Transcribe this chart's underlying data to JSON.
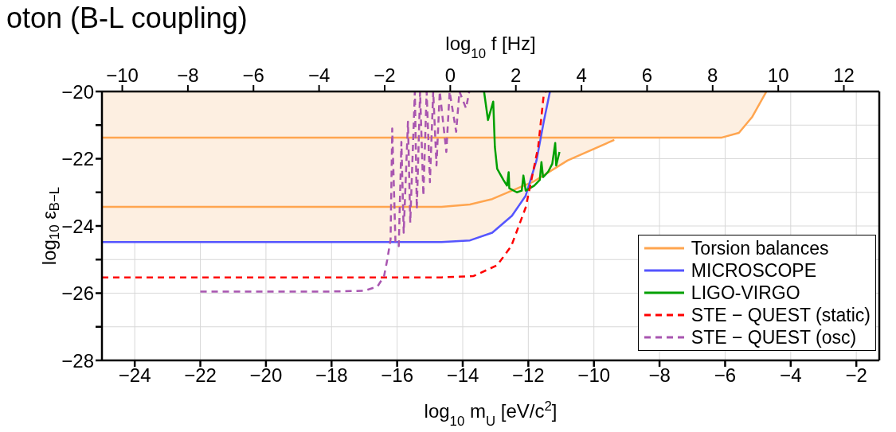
{
  "chart_data": {
    "type": "line",
    "title": "oton (B-L coupling)",
    "xlabel": "log$_{10}$ m$_{U}$ [eV/c$^{2}$]",
    "ylabel": "log$_{10}$ ε$_{B−L}$",
    "x2label": "log$_{10}$ f [Hz]",
    "xlim": [
      -25,
      -1.3
    ],
    "xticks": [
      -24,
      -22,
      -20,
      -18,
      -16,
      -14,
      -12,
      -10,
      -8,
      -6,
      -4,
      -2
    ],
    "x2lim": [
      -10.62,
      13.08
    ],
    "x2ticks": [
      -10,
      -8,
      -6,
      -4,
      -2,
      0,
      2,
      4,
      6,
      8,
      10,
      12
    ],
    "ylim": [
      -28,
      -20
    ],
    "yticks": [
      -28,
      {
        "value": -27,
        "label": null
      },
      -26,
      {
        "value": -25,
        "label": null
      },
      -24,
      {
        "value": -23,
        "label": null
      },
      -22,
      {
        "value": -21,
        "label": null
      },
      -20
    ],
    "grid": true,
    "legend": "bottom right",
    "series": [
      {
        "type": "area",
        "color": "#fdefe1",
        "x": [
          -25,
          -14.65,
          -13.78,
          -13.1,
          -12.5,
          -12.08,
          -11.9,
          -11.82,
          -10.8,
          -9.38,
          -9.3,
          -6.1,
          -5.58,
          -5.17,
          -4.74
        ],
        "values": [
          -24.48,
          -24.48,
          -24.43,
          -24.2,
          -23.7,
          -23.1,
          -22.75,
          -22.67,
          -22.05,
          -21.44,
          -21.37,
          -21.37,
          -21.23,
          -20.75,
          -20.0
        ]
      },
      {
        "name": "Torsion balances",
        "color": "#ffa54f",
        "line_style": "solid",
        "x": [
          -25,
          -6.1,
          -5.58,
          -5.17,
          -4.74
        ],
        "values": [
          -21.37,
          -21.37,
          -21.23,
          -20.75,
          -20.0
        ]
      },
      {
        "color": "#ffa54f",
        "line_style": "solid",
        "x": [
          -25,
          -14.65,
          -13.78,
          -13.1,
          -12.5,
          -11.82,
          -10.8,
          -9.38
        ],
        "values": [
          -23.43,
          -23.43,
          -23.36,
          -23.2,
          -22.95,
          -22.67,
          -22.05,
          -21.44
        ]
      },
      {
        "name": "MICROSCOPE",
        "color": "#5555ff",
        "line_style": "solid",
        "x": [
          -25,
          -14.65,
          -13.78,
          -13.1,
          -12.5,
          -12.08,
          -11.75,
          -11.53,
          -11.34
        ],
        "values": [
          -24.48,
          -24.48,
          -24.43,
          -24.2,
          -23.7,
          -23.1,
          -22.05,
          -20.9,
          -20.0
        ]
      },
      {
        "name": "LIGO-VIRGO",
        "color": "#00a000",
        "line_style": "solid",
        "x": [
          -13.35,
          -13.23,
          -13.07,
          -13.02,
          -12.95,
          -12.76,
          -12.65,
          -12.6,
          -12.58,
          -12.35,
          -12.2,
          -12.15,
          -12.08,
          -11.82,
          -11.65,
          -11.6,
          -11.55,
          -11.39,
          -11.27,
          -11.18,
          -11.15,
          -11.05
        ],
        "values": [
          -20.0,
          -20.85,
          -20.3,
          -21.65,
          -22.3,
          -22.63,
          -22.8,
          -22.4,
          -22.88,
          -23.0,
          -22.95,
          -22.5,
          -22.95,
          -22.8,
          -22.63,
          -22.1,
          -22.55,
          -22.38,
          -22.15,
          -21.53,
          -22.2,
          -21.8
        ]
      },
      {
        "name": "STE − QUEST (static)",
        "color": "#ff0000",
        "line_style": "dashed",
        "x": [
          -25,
          -14.65,
          -13.67,
          -12.95,
          -12.52,
          -12.08,
          -11.92,
          -11.7,
          -11.53,
          -11.47
        ],
        "values": [
          -25.53,
          -25.53,
          -25.49,
          -25.17,
          -24.6,
          -23.45,
          -22.7,
          -21.65,
          -20.1,
          -20.0
        ]
      },
      {
        "name": "STE − QUEST (osc)",
        "color": "#a855b0",
        "line_style": "dashed",
        "x": [
          -22,
          -18,
          -17,
          -16.6,
          -16.4,
          -16.3,
          -16.2,
          -16.15,
          -16.05,
          -15.95,
          -15.87,
          -15.8,
          -15.67,
          -15.6,
          -15.46,
          -15.4,
          -15.3,
          -15.2,
          -15.1,
          -15.0,
          -14.9,
          -14.8,
          -14.7,
          -14.5,
          -14.4,
          -14.2,
          -14.1,
          -13.9,
          -13.8
        ],
        "values": [
          -25.95,
          -25.95,
          -25.93,
          -25.8,
          -25.5,
          -25.0,
          -24.4,
          -21.1,
          -24.5,
          -24.6,
          -21.5,
          -24.2,
          -20.9,
          -23.9,
          -20.0,
          -23.5,
          -20.0,
          -23.1,
          -20.0,
          -22.7,
          -20.0,
          -22.2,
          -20.0,
          -21.8,
          -20.0,
          -21.2,
          -20.0,
          -20.5,
          -20.0
        ]
      }
    ]
  }
}
